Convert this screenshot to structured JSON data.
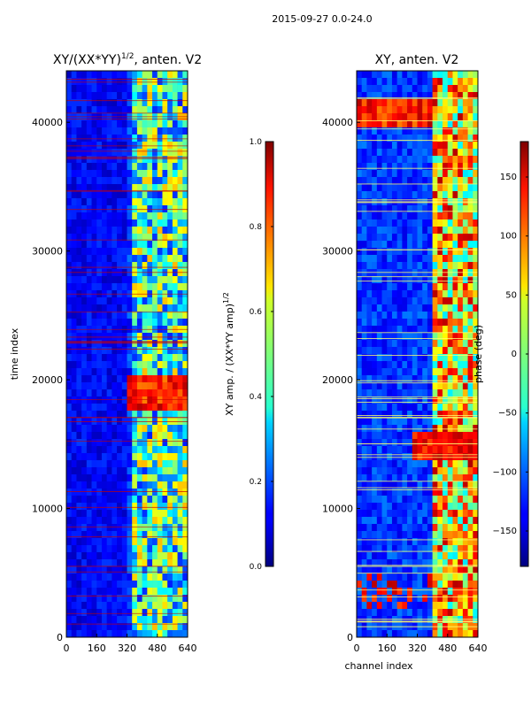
{
  "figure": {
    "suptitle": "2015-09-27 0.0-24.0"
  },
  "chart_data": [
    {
      "type": "heatmap",
      "title": "XY/(XX*YY)^{1/2}, anten. V2",
      "title_main": "XY/(XX*YY)",
      "title_sup": "1/2",
      "title_tail": ", anten. V2",
      "xlabel": "",
      "ylabel": "time index",
      "xlim": [
        0,
        640
      ],
      "ylim": [
        0,
        44000
      ],
      "xticks": [
        0,
        160,
        320,
        480,
        640
      ],
      "yticks": [
        0,
        10000,
        20000,
        30000,
        40000
      ],
      "colorbar": {
        "label": "XY amp. / (XX*YY amp)^{1/2}",
        "label_main": "XY amp. / (XX*YY amp)",
        "label_sup": "1/2",
        "range": [
          0.0,
          1.0
        ],
        "ticks": [
          0.0,
          0.2,
          0.4,
          0.6,
          0.8,
          1.0
        ],
        "tick_labels": [
          "0.0",
          "0.2",
          "0.4",
          "0.6",
          "0.8",
          "1.0"
        ],
        "colormap": "jet"
      }
    },
    {
      "type": "heatmap",
      "title": "XY, anten. V2",
      "xlabel": "channel index",
      "ylabel": "",
      "xlim": [
        0,
        640
      ],
      "ylim": [
        0,
        44000
      ],
      "xticks": [
        0,
        160,
        320,
        480,
        640
      ],
      "yticks": [
        0,
        10000,
        20000,
        30000,
        40000
      ],
      "colorbar": {
        "label": "phase (deg)",
        "range": [
          -180,
          180
        ],
        "ticks": [
          -150,
          -100,
          -50,
          0,
          50,
          100,
          150
        ],
        "tick_labels": [
          "−150",
          "−100",
          "−50",
          "0",
          "50",
          "100",
          "150"
        ],
        "colormap": "jet"
      }
    }
  ]
}
